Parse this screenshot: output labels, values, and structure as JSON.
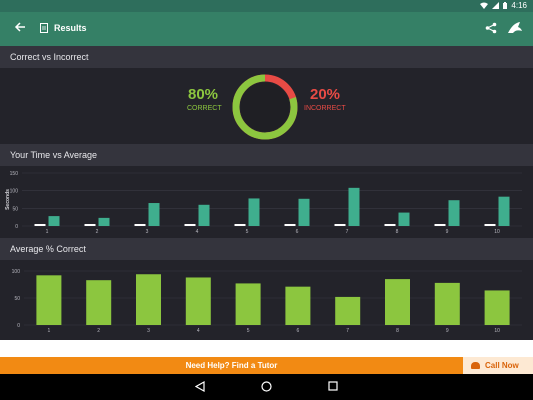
{
  "status_bar": {
    "time": "4:16"
  },
  "app_bar": {
    "title": "Results",
    "back_icon": "arrow-left-icon",
    "share_icon": "share-icon",
    "brand_icon": "shark-icon"
  },
  "colors": {
    "appbar": "#358066",
    "correct": "#8cc63f",
    "incorrect": "#e84b45",
    "teal_bar": "#3fae8e",
    "green_bar": "#8cc63f",
    "white_bar": "#ffffff",
    "accent_orange": "#f28a13"
  },
  "section1": {
    "title": "Correct vs Incorrect",
    "correct_pct": "80%",
    "correct_label": "CORRECT",
    "incorrect_pct": "20%",
    "incorrect_label": "INCORRECT",
    "correct_fraction": 0.8
  },
  "section2": {
    "title": "Your Time vs Average"
  },
  "section3": {
    "title": "Average % Correct"
  },
  "chart_data": [
    {
      "type": "bar",
      "title": "Your Time vs Average",
      "ylabel": "Seconds",
      "categories": [
        "1",
        "2",
        "3",
        "4",
        "5",
        "6",
        "7",
        "8",
        "9",
        "10"
      ],
      "yticks": [
        "0",
        "50",
        "100",
        "150"
      ],
      "ylim": [
        0,
        150
      ],
      "series": [
        {
          "values": [
            8,
            8,
            8,
            8,
            8,
            8,
            8,
            8,
            8,
            8
          ],
          "color": "#ffffff"
        },
        {
          "values": [
            28,
            23,
            65,
            60,
            78,
            77,
            108,
            38,
            73,
            83
          ],
          "color": "#3fae8e"
        }
      ],
      "grid": true
    },
    {
      "type": "bar",
      "title": "Average % Correct",
      "categories": [
        "1",
        "2",
        "3",
        "4",
        "5",
        "6",
        "7",
        "8",
        "9",
        "10"
      ],
      "yticks": [
        "0",
        "50",
        "100"
      ],
      "ylim": [
        0,
        100
      ],
      "series": [
        {
          "values": [
            92,
            83,
            94,
            88,
            77,
            71,
            52,
            85,
            78,
            64
          ],
          "color": "#8cc63f"
        }
      ],
      "grid": true
    }
  ],
  "footer": {
    "help_text": "Need Help? Find a Tutor",
    "call_label": "Call Now",
    "call_icon": "phone-icon"
  },
  "nav": {
    "back": "nav-back-icon",
    "home": "nav-home-icon",
    "recents": "nav-recents-icon"
  }
}
